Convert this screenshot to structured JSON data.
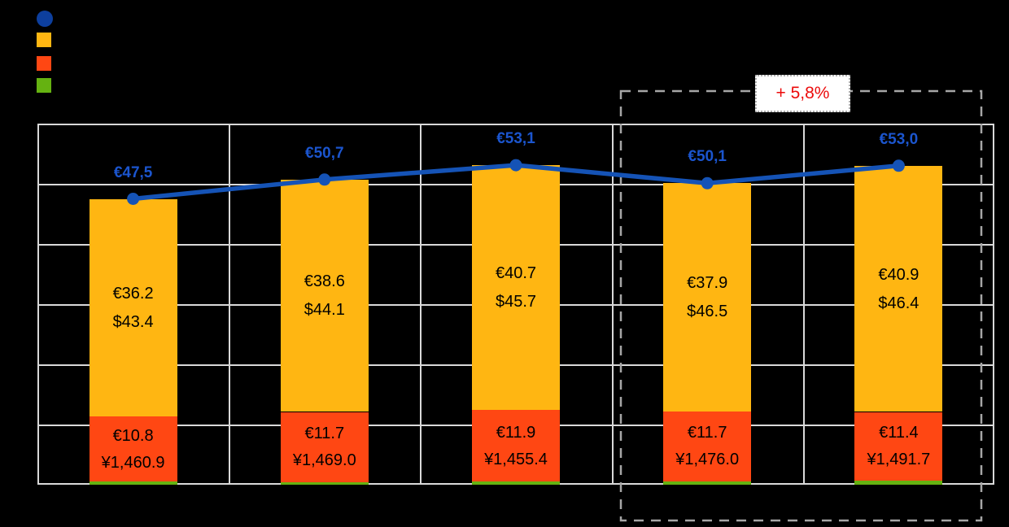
{
  "background": "#000000",
  "colors": {
    "line": "#1553B6",
    "line_label": "#1B55CE",
    "bar_yellow": "#FFB612",
    "bar_orange": "#FF4713",
    "bar_green": "#65B211",
    "legend_blue": "#0D3F9E",
    "gridline": "#D9D9D9",
    "dashed_box": "#A6A6A6",
    "annotation_red": "#EC0B0B",
    "bar_label_text": "#000000"
  },
  "legend": {
    "items": [
      {
        "name": "total-line",
        "marker": "circle",
        "color": "#0D3F9E",
        "label": ""
      },
      {
        "name": "segment-yellow",
        "marker": "square",
        "color": "#FFB612",
        "label": ""
      },
      {
        "name": "segment-orange",
        "marker": "square",
        "color": "#FF4713",
        "label": ""
      },
      {
        "name": "segment-green",
        "marker": "square",
        "color": "#65B211",
        "label": ""
      }
    ],
    "note": "legend text not visible (black on black background)"
  },
  "annotation": {
    "label": "+ 5,8%",
    "color": "#EC0B0B",
    "applies_to": "last two categories (dashed outlined group)"
  },
  "chart_data": {
    "type": "bar",
    "subtype": "stacked bars with line overlay",
    "categories": [
      "",
      "",
      "",
      "",
      ""
    ],
    "categories_note": "x-axis category labels not visible in image",
    "ylim": [
      0,
      60
    ],
    "gridline_step": 10,
    "grid": "on",
    "legend_position": "top-left",
    "series": [
      {
        "name": "total-line",
        "type": "line",
        "color": "#1553B6",
        "values": [
          47.5,
          50.7,
          53.1,
          50.1,
          53.0
        ],
        "labels": [
          "€47,5",
          "€50,7",
          "€53,1",
          "€50,1",
          "€53,0"
        ]
      },
      {
        "name": "stacked-yellow",
        "type": "bar-segment",
        "color": "#FFB612",
        "values": [
          36.2,
          38.6,
          40.7,
          37.9,
          40.9
        ],
        "labels_eur": [
          "€36.2",
          "€38.6",
          "€40.7",
          "€37.9",
          "€40.9"
        ],
        "labels_usd": [
          "$43.4",
          "$44.1",
          "$45.7",
          "$46.5",
          "$46.4"
        ]
      },
      {
        "name": "stacked-orange",
        "type": "bar-segment",
        "color": "#FF4713",
        "values": [
          10.8,
          11.7,
          11.9,
          11.7,
          11.4
        ],
        "labels_eur": [
          "€10.8",
          "€11.7",
          "€11.9",
          "€11.7",
          "€11.4"
        ],
        "labels_jpy": [
          "¥1,460.9",
          "¥1,469.0",
          "¥1,455.4",
          "¥1,476.0",
          "¥1,491.7"
        ]
      },
      {
        "name": "stacked-green",
        "type": "bar-segment",
        "color": "#65B211",
        "values": [
          0.5,
          0.4,
          0.5,
          0.5,
          0.7
        ],
        "values_note": "segment too thin for labels; estimated as line total minus labeled segments"
      }
    ]
  }
}
